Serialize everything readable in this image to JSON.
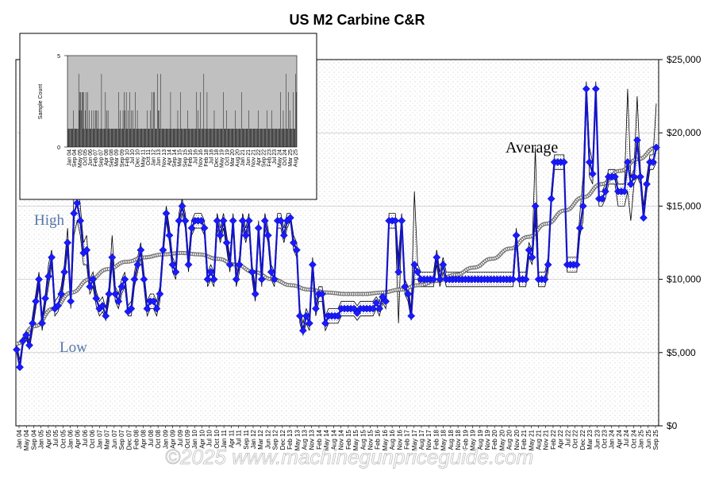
{
  "chart_data": {
    "type": "line",
    "title": "US M2 Carbine C&R",
    "ylim": [
      0,
      25000
    ],
    "y_ticks": [
      "$0",
      "$5,000",
      "$10,000",
      "$15,000",
      "$20,000",
      "$25,000"
    ],
    "y_tick_values": [
      0,
      5000,
      10000,
      15000,
      20000,
      25000
    ],
    "x_tick_labels": [
      "Jan 04",
      "May 04",
      "Sep 04",
      "Jan 05",
      "Apr 05",
      "Jul 05",
      "Oct 05",
      "Jan 06",
      "Apr 06",
      "Jul 06",
      "Oct 06",
      "Jan 07",
      "Mar 07",
      "Jun 07",
      "Sep 07",
      "Dec 07",
      "Feb 08",
      "Apr 08",
      "Jul 08",
      "Oct 08",
      "Jan 09",
      "Apr 09",
      "Jul 09",
      "Oct 09",
      "Jan 10",
      "Apr 10",
      "Jul 10",
      "Oct 10",
      "Jan 11",
      "Apr 11",
      "Jul 11",
      "Sep 11",
      "Jan 12",
      "Mar 12",
      "Jun 12",
      "Sep 12",
      "Dec 12",
      "Feb 13",
      "May 13",
      "Aug 13",
      "Nov 13",
      "Feb 14",
      "May 14",
      "Aug 14",
      "Nov 14",
      "Feb 15",
      "May 15",
      "Aug 15",
      "Nov 15",
      "Feb 16",
      "May 16",
      "Aug 16",
      "Nov 16",
      "Feb 17",
      "May 17",
      "Aug 17",
      "Nov 17",
      "Feb 18",
      "May 18",
      "Aug 18",
      "Nov 18",
      "Feb 19",
      "May 19",
      "Aug 19",
      "Nov 19",
      "Feb 20",
      "May 20",
      "Aug 20",
      "Nov 20",
      "Feb 21",
      "May 21",
      "Aug 21",
      "Nov 21",
      "Feb 22",
      "Apr 22",
      "Jul 22",
      "Oct 22",
      "Dec 22",
      "Mar 23",
      "Jun 23",
      "Oct 23",
      "Jan 24",
      "Apr 24",
      "Jul 24",
      "Oct 24",
      "Jan 25",
      "Jun 25",
      "Sep 25"
    ],
    "annotations": [
      "Average",
      "High",
      "Low"
    ],
    "series": [
      {
        "role": "sales",
        "color": "#1414c8",
        "marker_color": "#1a1aff",
        "values": [
          5200,
          4000,
          5800,
          6200,
          5500,
          7000,
          8500,
          10000,
          7000,
          8700,
          10200,
          11500,
          8000,
          8200,
          9000,
          10500,
          12500,
          8500,
          14500,
          15200,
          14000,
          11800,
          12000,
          9500,
          10000,
          8700,
          8000,
          8200,
          7500,
          9000,
          11500,
          9000,
          8500,
          9500,
          10000,
          7800,
          8000,
          10000,
          11000,
          12000,
          10000,
          8000,
          8500,
          8500,
          8000,
          9000,
          12000,
          14500,
          13000,
          11000,
          10500,
          14000,
          15000,
          14000,
          11000,
          13500,
          14000,
          14000,
          14000,
          13500,
          10000,
          10500,
          10000,
          14000,
          13000,
          14000,
          12500,
          11000,
          14000,
          10000,
          11000,
          14000,
          13000,
          14000,
          10500,
          9000,
          13500,
          10000,
          14000,
          13000,
          10500,
          10000,
          14000,
          14000,
          13000,
          14000,
          14200,
          12500,
          12000,
          7500,
          6500,
          7500,
          7000,
          11000,
          8000,
          9000,
          9000,
          7000,
          7500,
          7500,
          7500,
          7500,
          8000,
          8000,
          8000,
          8000,
          8000,
          7700,
          8000,
          8000,
          8000,
          8000,
          8000,
          8400,
          8000,
          8800,
          8500,
          14000,
          14000,
          14000,
          10500,
          14000,
          9500,
          9000,
          7500,
          11000,
          10500,
          10000,
          10000,
          10000,
          10000,
          10000,
          11500,
          10000,
          11000,
          10000,
          10000,
          10000,
          10000,
          10000,
          10000,
          10000,
          10000,
          10000,
          10000,
          10000,
          10000,
          10000,
          10000,
          10000,
          10000,
          10000,
          10000,
          10000,
          10000,
          10000,
          10000,
          13000,
          10000,
          10000,
          10000,
          12000,
          11500,
          15000,
          10000,
          10000,
          10000,
          11000,
          15500,
          18000,
          18000,
          18000,
          18000,
          11000,
          11000,
          11000,
          11000,
          13500,
          15000,
          23000,
          18000,
          17200,
          23000,
          15500,
          15500,
          16000,
          17000,
          17000,
          17000,
          16000,
          16000,
          16000,
          18000,
          16500,
          17000,
          19500,
          17000,
          14200,
          16500,
          18000,
          18000,
          19000
        ]
      },
      {
        "role": "high",
        "color": "#000000",
        "values": [
          5500,
          4500,
          6000,
          6500,
          5800,
          7500,
          9000,
          10500,
          7500,
          9000,
          11000,
          12000,
          8500,
          8800,
          9500,
          11000,
          13500,
          9000,
          16000,
          17000,
          15000,
          12500,
          13000,
          10000,
          10500,
          9200,
          8500,
          8800,
          8000,
          9500,
          13000,
          9500,
          9000,
          10000,
          10500,
          8200,
          8500,
          10500,
          11500,
          12500,
          10500,
          8500,
          9000,
          9000,
          8500,
          9500,
          12500,
          15000,
          13500,
          11500,
          11000,
          14500,
          15500,
          14500,
          11500,
          14000,
          14500,
          14500,
          14500,
          14000,
          10500,
          11000,
          10500,
          14500,
          13500,
          14500,
          13000,
          11500,
          14500,
          10500,
          11500,
          14500,
          13500,
          14500,
          11000,
          9500,
          14000,
          10500,
          14500,
          13500,
          11000,
          10500,
          14500,
          14500,
          13500,
          14500,
          14500,
          13000,
          12500,
          8000,
          7000,
          8000,
          7500,
          11500,
          8500,
          9500,
          9500,
          7500,
          8000,
          8000,
          8000,
          8000,
          8500,
          8500,
          8500,
          8500,
          8500,
          8200,
          8500,
          8500,
          8500,
          8500,
          8500,
          8800,
          8500,
          9200,
          9000,
          14500,
          14500,
          14500,
          11500,
          14500,
          10000,
          9500,
          8000,
          16000,
          11000,
          10500,
          10500,
          10500,
          10500,
          10500,
          12000,
          10500,
          11500,
          10500,
          10500,
          10500,
          10500,
          10500,
          10500,
          10500,
          10500,
          10500,
          10500,
          10500,
          10500,
          10500,
          10500,
          10500,
          10500,
          10500,
          10500,
          10500,
          10500,
          10500,
          10500,
          13500,
          10500,
          10500,
          10500,
          12500,
          12000,
          19000,
          10500,
          10500,
          10500,
          11500,
          16000,
          18500,
          18500,
          18500,
          18500,
          11500,
          11500,
          11500,
          11500,
          14500,
          17000,
          23500,
          19000,
          18000,
          23500,
          16000,
          16000,
          16500,
          17500,
          17500,
          17500,
          16500,
          16500,
          16500,
          23000,
          17000,
          17500,
          22500,
          17500,
          15000,
          17000,
          18500,
          18500,
          22000
        ]
      },
      {
        "role": "low",
        "color": "#000000",
        "values": [
          5000,
          3800,
          5500,
          6000,
          5200,
          6500,
          8000,
          9500,
          6500,
          8200,
          9500,
          11000,
          7500,
          7800,
          8500,
          10000,
          12000,
          8000,
          13000,
          14000,
          13000,
          11000,
          11000,
          9000,
          9500,
          8200,
          7500,
          7800,
          7200,
          8500,
          11000,
          8500,
          8000,
          9000,
          9500,
          7500,
          7500,
          9500,
          10500,
          11500,
          9500,
          7500,
          8000,
          8000,
          7500,
          8500,
          11500,
          14000,
          12500,
          10500,
          10000,
          13500,
          14500,
          13500,
          10500,
          13000,
          13500,
          13500,
          13500,
          13000,
          9500,
          10000,
          9500,
          13500,
          12500,
          13500,
          12000,
          10500,
          13500,
          9500,
          10500,
          13500,
          12500,
          13500,
          10000,
          8500,
          13000,
          9500,
          13500,
          12500,
          10000,
          9500,
          13500,
          13500,
          12500,
          13500,
          14000,
          12000,
          11500,
          7000,
          6200,
          7000,
          6500,
          10500,
          7500,
          8500,
          8500,
          6500,
          7000,
          7000,
          7000,
          7000,
          7500,
          7500,
          7500,
          7500,
          7500,
          7200,
          7500,
          7500,
          7500,
          7500,
          7500,
          8000,
          7500,
          8400,
          8000,
          13500,
          13500,
          13500,
          7000,
          13500,
          9000,
          8500,
          7200,
          10000,
          10000,
          9500,
          9500,
          9500,
          9500,
          9500,
          11000,
          9500,
          10500,
          9500,
          9500,
          9500,
          9500,
          9500,
          9500,
          9500,
          9500,
          9500,
          9500,
          9500,
          9500,
          9500,
          9500,
          9500,
          9500,
          9500,
          9500,
          9500,
          9500,
          9500,
          9500,
          12500,
          9500,
          9500,
          9500,
          11500,
          11000,
          14000,
          9500,
          9500,
          9500,
          10500,
          15000,
          17500,
          17500,
          17500,
          17500,
          10500,
          10500,
          10500,
          10500,
          13000,
          14000,
          22500,
          17000,
          16500,
          22500,
          15000,
          15000,
          15500,
          16500,
          16500,
          16500,
          15000,
          15000,
          15000,
          16000,
          14000,
          16500,
          17000,
          16500,
          14000,
          16000,
          17500,
          17500,
          18000
        ]
      },
      {
        "role": "average",
        "color": "#000000",
        "values": [
          5600,
          6800,
          8000,
          9100,
          10000,
          10700,
          11200,
          11500,
          11700,
          11800,
          11700,
          11400,
          11000,
          10500,
          10000,
          9600,
          9300,
          9100,
          9000,
          9000,
          9100,
          9300,
          9600,
          9900,
          10300,
          10800,
          11400,
          12100,
          12900,
          13800,
          14700,
          15600,
          16500,
          17400,
          18200,
          19000
        ]
      }
    ],
    "inset": {
      "type": "bar",
      "ylabel": "Sample Count",
      "ylim": [
        0,
        5
      ],
      "y_ticks": [
        "0",
        "5"
      ],
      "x_tick_labels": [
        "Jan 04",
        "Sep 04",
        "May 05",
        "Oct 05",
        "Jun 06",
        "Feb 07",
        "Sep 07",
        "Apr 08",
        "Sep 08",
        "Mar 09",
        "Sep 09",
        "Feb 10",
        "Jul 10",
        "Dec 10",
        "May 11",
        "Oct 11",
        "Jan 12",
        "Jun 13",
        "Nov 13",
        "Apr 14",
        "Sep 14",
        "Mar 15",
        "Sep 15",
        "Feb 16",
        "Jul 16",
        "Nov 16",
        "Feb 18",
        "Jul 18",
        "Dec 18",
        "May 19",
        "Oct 19",
        "Mar 20",
        "Aug 20",
        "Jan 21",
        "Jun 21",
        "Nov 21",
        "Apr 22",
        "Sep 22",
        "Feb 23",
        "Jul 23",
        "May 24",
        "Oct 24",
        "Mar 25",
        "Aug 25"
      ],
      "values": [
        1,
        1,
        1,
        1,
        1,
        1,
        1,
        1,
        1,
        2,
        1,
        1,
        1,
        1,
        1,
        1,
        1,
        4,
        2,
        3,
        3,
        2,
        3,
        3,
        1,
        3,
        1,
        2,
        3,
        1,
        1,
        3,
        1,
        2,
        1,
        1,
        1,
        2,
        1,
        1,
        2,
        1,
        1,
        2,
        2,
        1,
        1,
        2,
        1,
        1,
        1,
        1,
        4,
        1,
        1,
        1,
        1,
        1,
        3,
        1,
        2,
        1,
        2,
        1,
        1,
        1,
        1,
        1,
        1,
        1,
        1,
        1,
        1,
        1,
        1,
        1,
        1,
        1,
        3,
        1,
        1,
        2,
        1,
        1,
        1,
        2,
        1,
        3,
        2,
        1,
        3,
        1,
        1,
        2,
        1,
        3,
        1,
        1,
        2,
        1,
        2,
        1,
        1,
        1,
        3,
        1,
        1,
        2,
        1,
        1,
        1,
        1,
        1,
        1,
        1,
        1,
        1,
        1,
        1,
        1,
        1,
        1,
        2,
        1,
        1,
        1,
        1,
        2,
        1,
        3,
        1,
        1,
        3,
        3,
        1,
        1,
        1,
        1,
        4,
        2,
        2,
        1,
        1,
        4,
        1,
        1,
        1,
        1,
        1,
        1,
        1,
        1,
        1,
        1,
        1,
        1,
        1,
        1,
        3,
        1,
        1,
        1,
        1,
        1,
        1,
        1,
        1,
        1,
        1,
        2,
        1,
        1,
        1,
        3,
        1,
        1,
        1,
        1,
        1,
        1,
        1,
        1,
        1,
        1,
        2,
        1,
        1,
        1,
        1,
        1,
        1,
        1,
        1,
        1,
        1,
        1,
        1,
        1,
        3,
        1,
        2,
        1,
        1,
        1,
        3,
        1,
        1,
        1,
        1,
        4,
        1,
        1,
        1,
        1,
        3,
        1,
        1,
        1,
        1,
        1,
        1,
        1,
        1,
        1,
        1,
        2,
        1,
        1,
        1,
        1,
        1,
        1,
        1,
        1,
        1,
        1,
        1,
        1,
        1,
        3,
        1,
        1,
        1,
        1,
        2,
        1,
        1,
        1,
        1,
        1,
        1,
        1,
        1,
        1,
        1,
        1,
        1,
        2,
        1,
        1,
        1,
        1,
        1,
        1,
        1,
        1,
        1,
        3,
        1,
        1,
        1,
        1,
        1,
        1,
        1,
        1,
        1,
        1,
        2,
        1,
        1,
        1,
        1,
        1,
        1,
        1,
        1,
        1,
        1,
        1,
        1,
        1,
        1,
        2,
        1,
        1,
        1,
        1,
        1,
        1,
        1,
        1,
        1,
        1,
        1,
        1,
        2,
        1,
        1,
        1,
        1,
        1,
        1,
        2,
        1,
        1,
        1,
        1,
        1,
        1,
        1,
        1,
        1,
        1,
        1,
        1,
        1,
        3,
        1,
        1,
        1,
        2,
        1,
        1,
        1,
        4,
        1,
        1,
        1,
        3,
        1,
        2,
        1,
        1,
        1,
        1,
        3,
        1,
        1,
        1,
        4,
        3
      ]
    },
    "watermark": "©2025  www.machinegunpriceguide.com"
  }
}
